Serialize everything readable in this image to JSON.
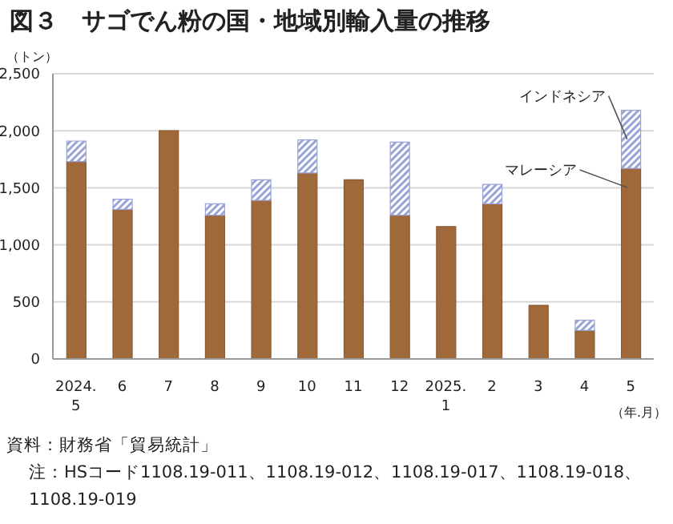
{
  "chart_data": {
    "type": "bar",
    "title": "図３　サゴでん粉の国・地域別輸入量の推移",
    "ylabel": "（トン）",
    "xlabel": "（年.月）",
    "categories": [
      "2024.\n5",
      "6",
      "7",
      "8",
      "9",
      "10",
      "11",
      "12",
      "2025.\n1",
      "2",
      "3",
      "4",
      "5"
    ],
    "stacked": true,
    "legend": false,
    "grid": "y",
    "series": [
      {
        "name": "マレーシア",
        "color": "#a0693a",
        "values": [
          1730,
          1310,
          2000,
          1260,
          1390,
          1630,
          1570,
          1260,
          1160,
          1360,
          470,
          250,
          1670
        ]
      },
      {
        "name": "インドネシア",
        "color": "#9aa3d6",
        "values": [
          180,
          90,
          0,
          100,
          180,
          290,
          0,
          640,
          0,
          170,
          0,
          90,
          510
        ]
      }
    ],
    "ylim": [
      0,
      2500
    ],
    "yticks": [
      {
        "value": 0,
        "label": "0"
      },
      {
        "value": 500,
        "label": "500"
      },
      {
        "value": 1000,
        "label": "1,000"
      },
      {
        "value": 1500,
        "label": "1,500"
      },
      {
        "value": 2000,
        "label": "2,000"
      },
      {
        "value": 2500,
        "label": "2,500"
      }
    ],
    "annotations": [
      "資料：財務省「貿易統計」",
      "注：HSコード1108.19-011、1108.19-012、1108.19-017、1108.19-018、1108.19-019"
    ]
  }
}
